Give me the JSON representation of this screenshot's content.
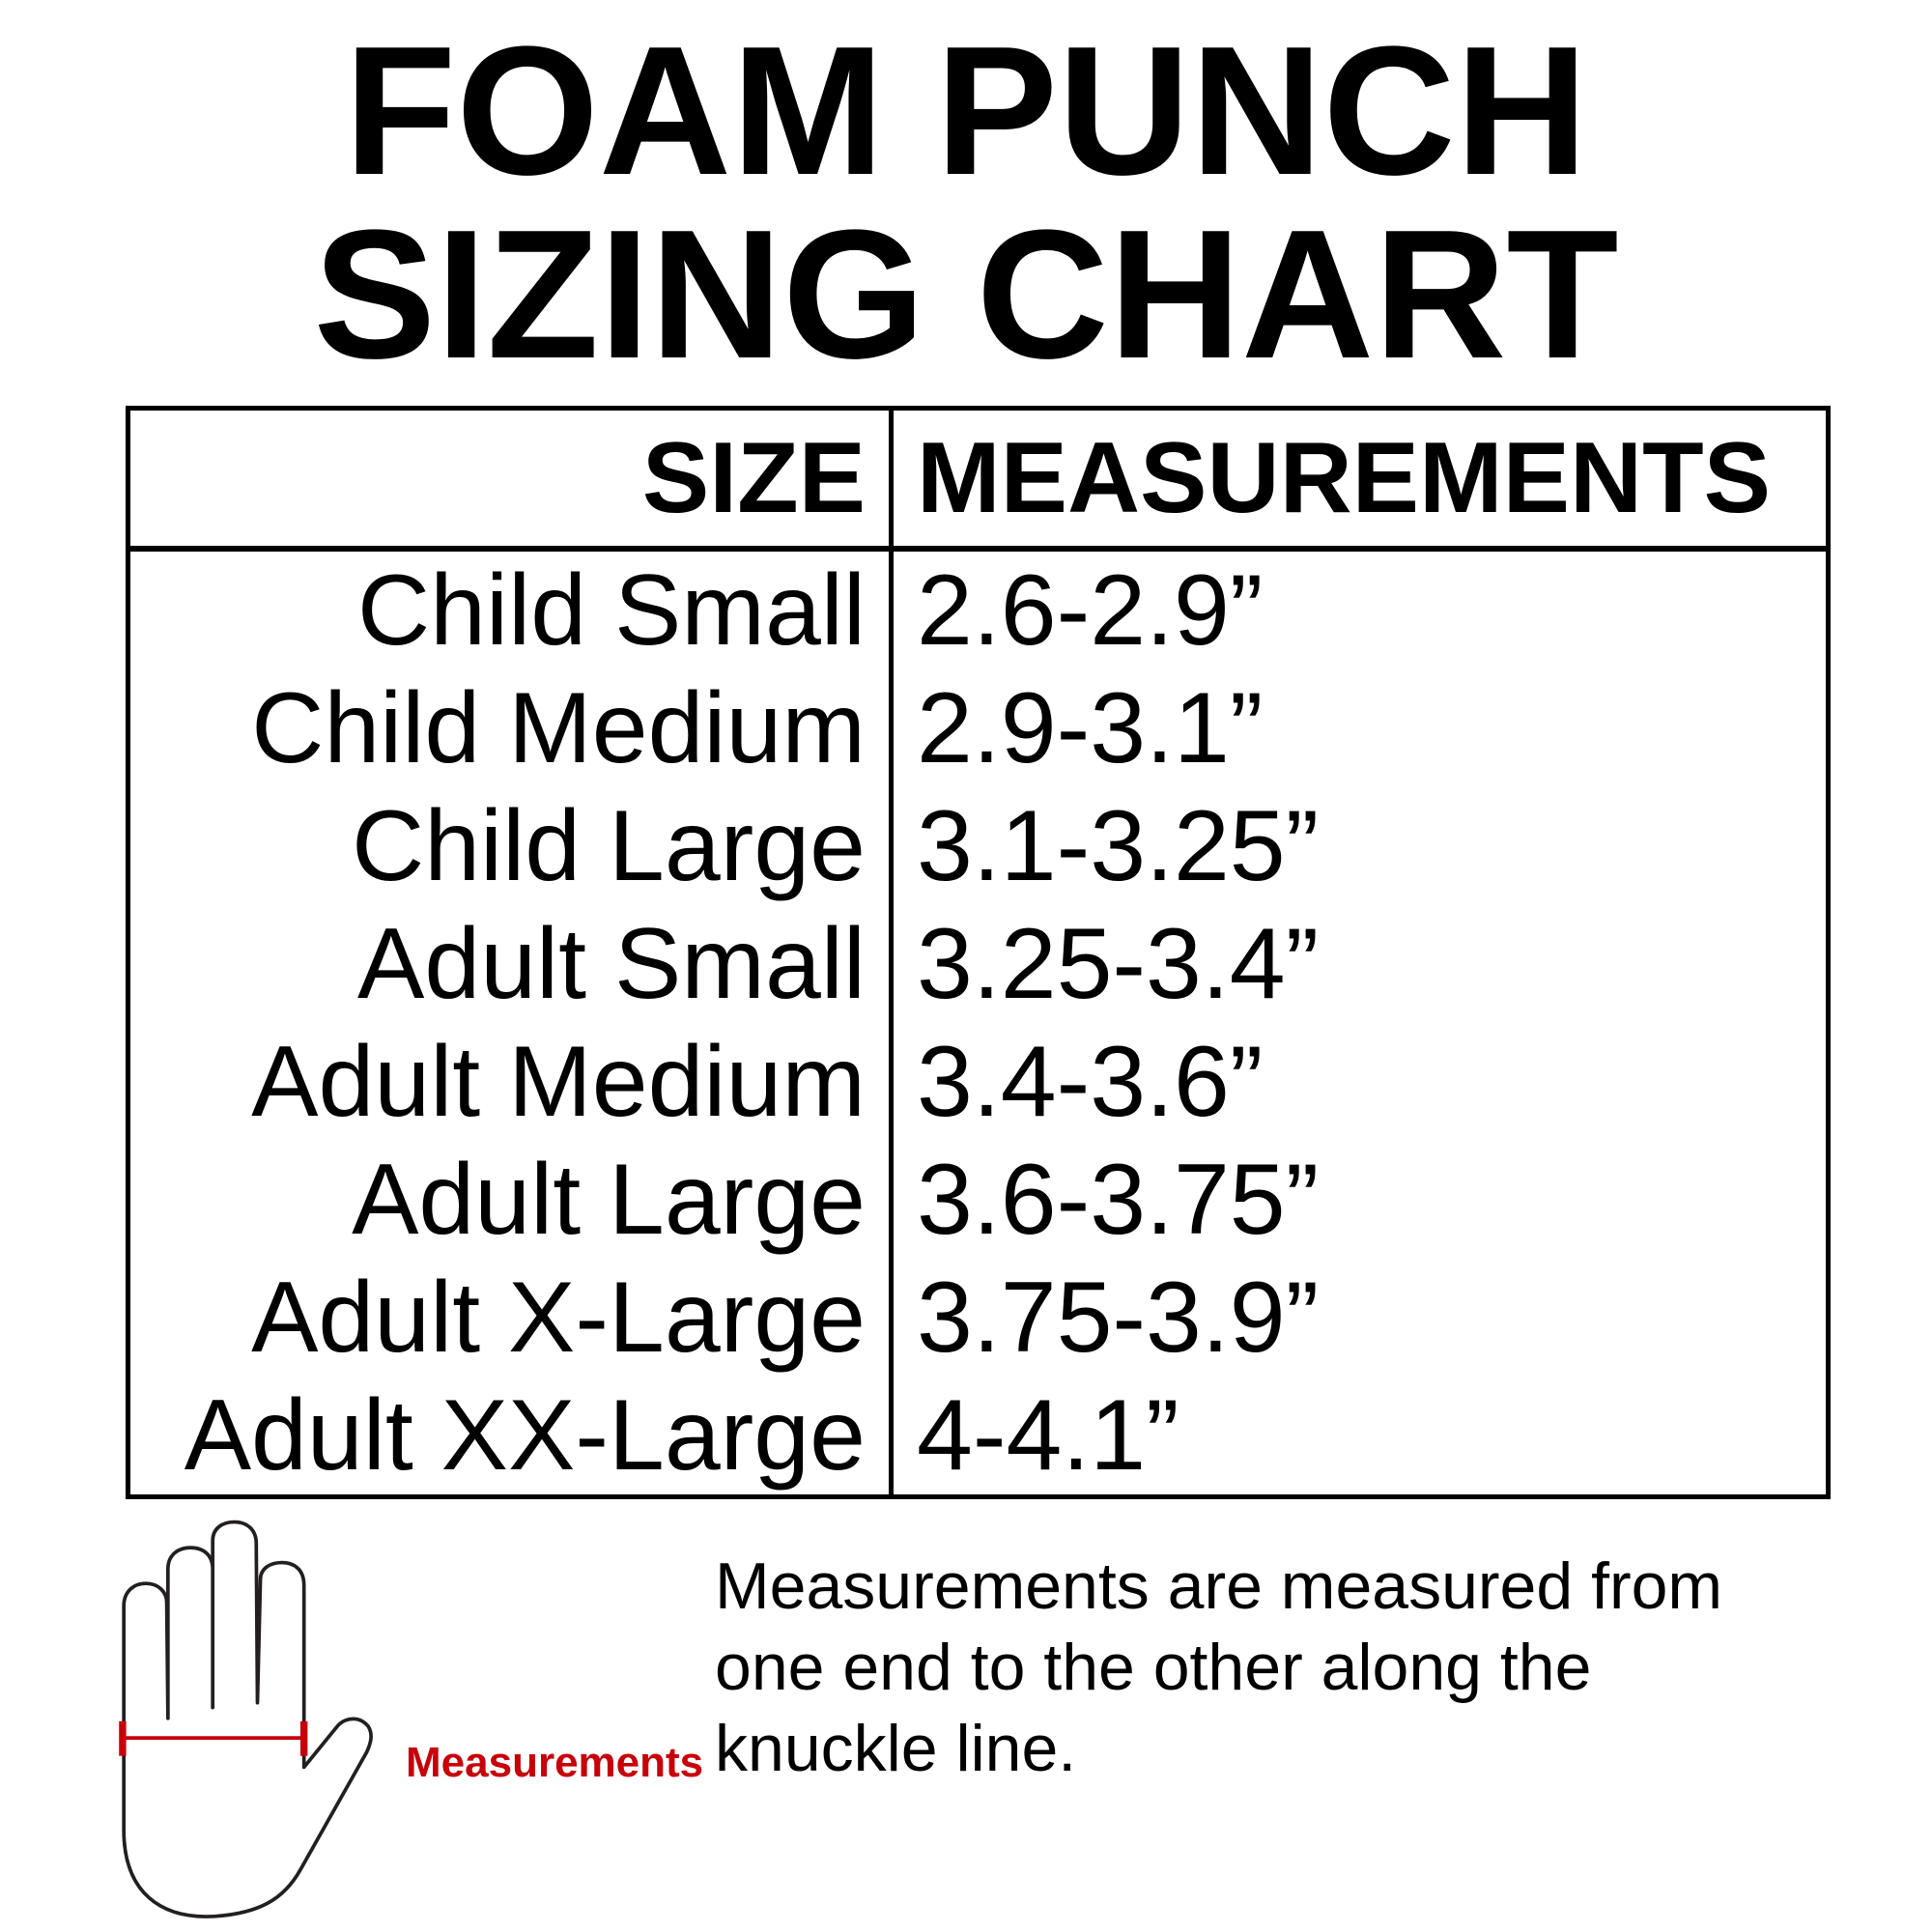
{
  "title": "FOAM PUNCH SIZING CHART",
  "diagram": {
    "measure_label": "Measurements",
    "measure_color": "#c8000a",
    "outline_color": "#231f20"
  },
  "table": {
    "headers": {
      "size": "SIZE",
      "measurements": "MEASUREMENTS"
    },
    "rows": [
      {
        "size": "Child Small",
        "measurement": "2.6-2.9”"
      },
      {
        "size": "Child Medium",
        "measurement": "2.9-3.1”"
      },
      {
        "size": "Child Large",
        "measurement": "3.1-3.25”"
      },
      {
        "size": "Adult Small",
        "measurement": "3.25-3.4”"
      },
      {
        "size": "Adult Medium",
        "measurement": "3.4-3.6”"
      },
      {
        "size": "Adult Large",
        "measurement": "3.6-3.75”"
      },
      {
        "size": "Adult X-Large",
        "measurement": "3.75-3.9”"
      },
      {
        "size": "Adult XX-Large",
        "measurement": "4-4.1”"
      }
    ]
  },
  "footer": "Measurements are measured from one end to the other along the knuckle line."
}
